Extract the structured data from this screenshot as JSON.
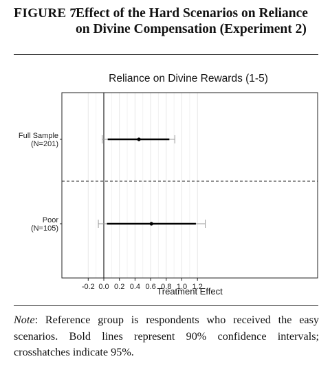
{
  "figure": {
    "label_prefix": "F",
    "label_rest": "IGURE 7",
    "title": "Effect of the Hard Scenarios on Reliance on Divine Compensation (Experiment 2)"
  },
  "note": {
    "label": "Note",
    "text": ": Reference group is respondents who received the easy scenarios. Bold lines represent 90% confidence intervals; crosshatches indicate 95%."
  },
  "chart_data": {
    "type": "coefficient-plot",
    "title": "Reliance on Divine Rewards (1-5)",
    "xlabel": "Treatment Effect",
    "xlim": [
      -0.25,
      1.37
    ],
    "xticks": [
      -0.2,
      0.0,
      0.2,
      0.4,
      0.6,
      0.8,
      1.0,
      1.2
    ],
    "xtick_labels": [
      "-0.2",
      "0.0",
      "0.2",
      "0.4",
      "0.6",
      "0.8",
      "1.0",
      "1.2"
    ],
    "grid": true,
    "reference_line": 0,
    "groups": [
      {
        "label": "Full Sample",
        "n": "(N=201)",
        "estimate": 0.45,
        "ci90": [
          0.05,
          0.84
        ],
        "ci95": [
          -0.02,
          0.91
        ]
      },
      {
        "label": "Poor",
        "n": "(N=105)",
        "estimate": 0.61,
        "ci90": [
          0.04,
          1.18
        ],
        "ci95": [
          -0.07,
          1.3
        ]
      }
    ]
  }
}
